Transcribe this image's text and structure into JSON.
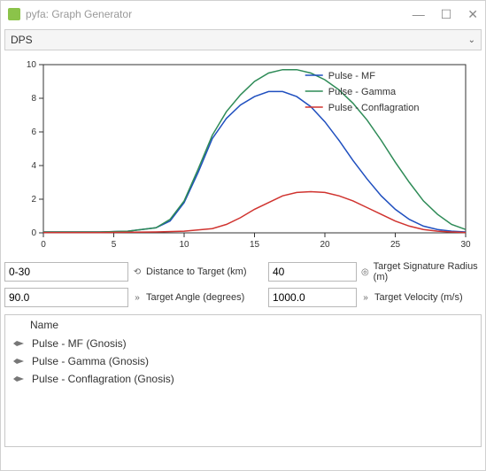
{
  "window": {
    "title": "pyfa: Graph Generator",
    "icon_color": "#8bc34a"
  },
  "dropdown": {
    "label": "DPS"
  },
  "chart": {
    "type": "line",
    "background_color": "#ffffff",
    "grid_color": "#d9d9d9",
    "axis_color": "#333333",
    "xlim": [
      0,
      30
    ],
    "ylim": [
      0,
      10
    ],
    "xtick_step": 5,
    "ytick_step": 2,
    "tick_fontsize": 10,
    "legend_fontsize": 11,
    "series": [
      {
        "name": "Pulse - MF",
        "color": "#1f4fbf",
        "points": [
          [
            0,
            0.05
          ],
          [
            2,
            0.05
          ],
          [
            4,
            0.05
          ],
          [
            6,
            0.1
          ],
          [
            8,
            0.3
          ],
          [
            9,
            0.7
          ],
          [
            10,
            1.8
          ],
          [
            11,
            3.6
          ],
          [
            12,
            5.6
          ],
          [
            13,
            6.8
          ],
          [
            14,
            7.6
          ],
          [
            15,
            8.1
          ],
          [
            16,
            8.4
          ],
          [
            17,
            8.4
          ],
          [
            18,
            8.1
          ],
          [
            19,
            7.5
          ],
          [
            20,
            6.6
          ],
          [
            21,
            5.5
          ],
          [
            22,
            4.3
          ],
          [
            23,
            3.2
          ],
          [
            24,
            2.2
          ],
          [
            25,
            1.4
          ],
          [
            26,
            0.8
          ],
          [
            27,
            0.4
          ],
          [
            28,
            0.2
          ],
          [
            29,
            0.1
          ],
          [
            30,
            0.05
          ]
        ]
      },
      {
        "name": "Pulse - Gamma",
        "color": "#2e8b57",
        "points": [
          [
            0,
            0.05
          ],
          [
            2,
            0.05
          ],
          [
            4,
            0.05
          ],
          [
            6,
            0.1
          ],
          [
            8,
            0.3
          ],
          [
            9,
            0.8
          ],
          [
            10,
            1.9
          ],
          [
            11,
            3.8
          ],
          [
            12,
            5.8
          ],
          [
            13,
            7.2
          ],
          [
            14,
            8.2
          ],
          [
            15,
            9.0
          ],
          [
            16,
            9.5
          ],
          [
            17,
            9.7
          ],
          [
            18,
            9.7
          ],
          [
            19,
            9.5
          ],
          [
            20,
            9.1
          ],
          [
            21,
            8.5
          ],
          [
            22,
            7.7
          ],
          [
            23,
            6.7
          ],
          [
            24,
            5.5
          ],
          [
            25,
            4.2
          ],
          [
            26,
            3.0
          ],
          [
            27,
            1.9
          ],
          [
            28,
            1.1
          ],
          [
            29,
            0.5
          ],
          [
            30,
            0.2
          ]
        ]
      },
      {
        "name": "Pulse - Conflagration",
        "color": "#d0332f",
        "points": [
          [
            0,
            0.02
          ],
          [
            4,
            0.02
          ],
          [
            8,
            0.05
          ],
          [
            10,
            0.1
          ],
          [
            12,
            0.25
          ],
          [
            13,
            0.5
          ],
          [
            14,
            0.9
          ],
          [
            15,
            1.4
          ],
          [
            16,
            1.8
          ],
          [
            17,
            2.2
          ],
          [
            18,
            2.4
          ],
          [
            19,
            2.45
          ],
          [
            20,
            2.4
          ],
          [
            21,
            2.2
          ],
          [
            22,
            1.9
          ],
          [
            23,
            1.5
          ],
          [
            24,
            1.1
          ],
          [
            25,
            0.7
          ],
          [
            26,
            0.4
          ],
          [
            27,
            0.2
          ],
          [
            28,
            0.1
          ],
          [
            29,
            0.05
          ],
          [
            30,
            0.02
          ]
        ]
      }
    ],
    "legend_position": "top-right"
  },
  "inputs": {
    "row1": {
      "value": "0-30",
      "label": "Distance to Target (km)",
      "value2": "40",
      "label2": "Target Signature Radius (m)"
    },
    "row2": {
      "value": "90.0",
      "label": "Target Angle (degrees)",
      "value2": "1000.0",
      "label2": "Target Velocity (m/s)"
    }
  },
  "list": {
    "header": "Name",
    "items": [
      "Pulse - MF (Gnosis)",
      "Pulse - Gamma (Gnosis)",
      "Pulse - Conflagration (Gnosis)"
    ]
  }
}
